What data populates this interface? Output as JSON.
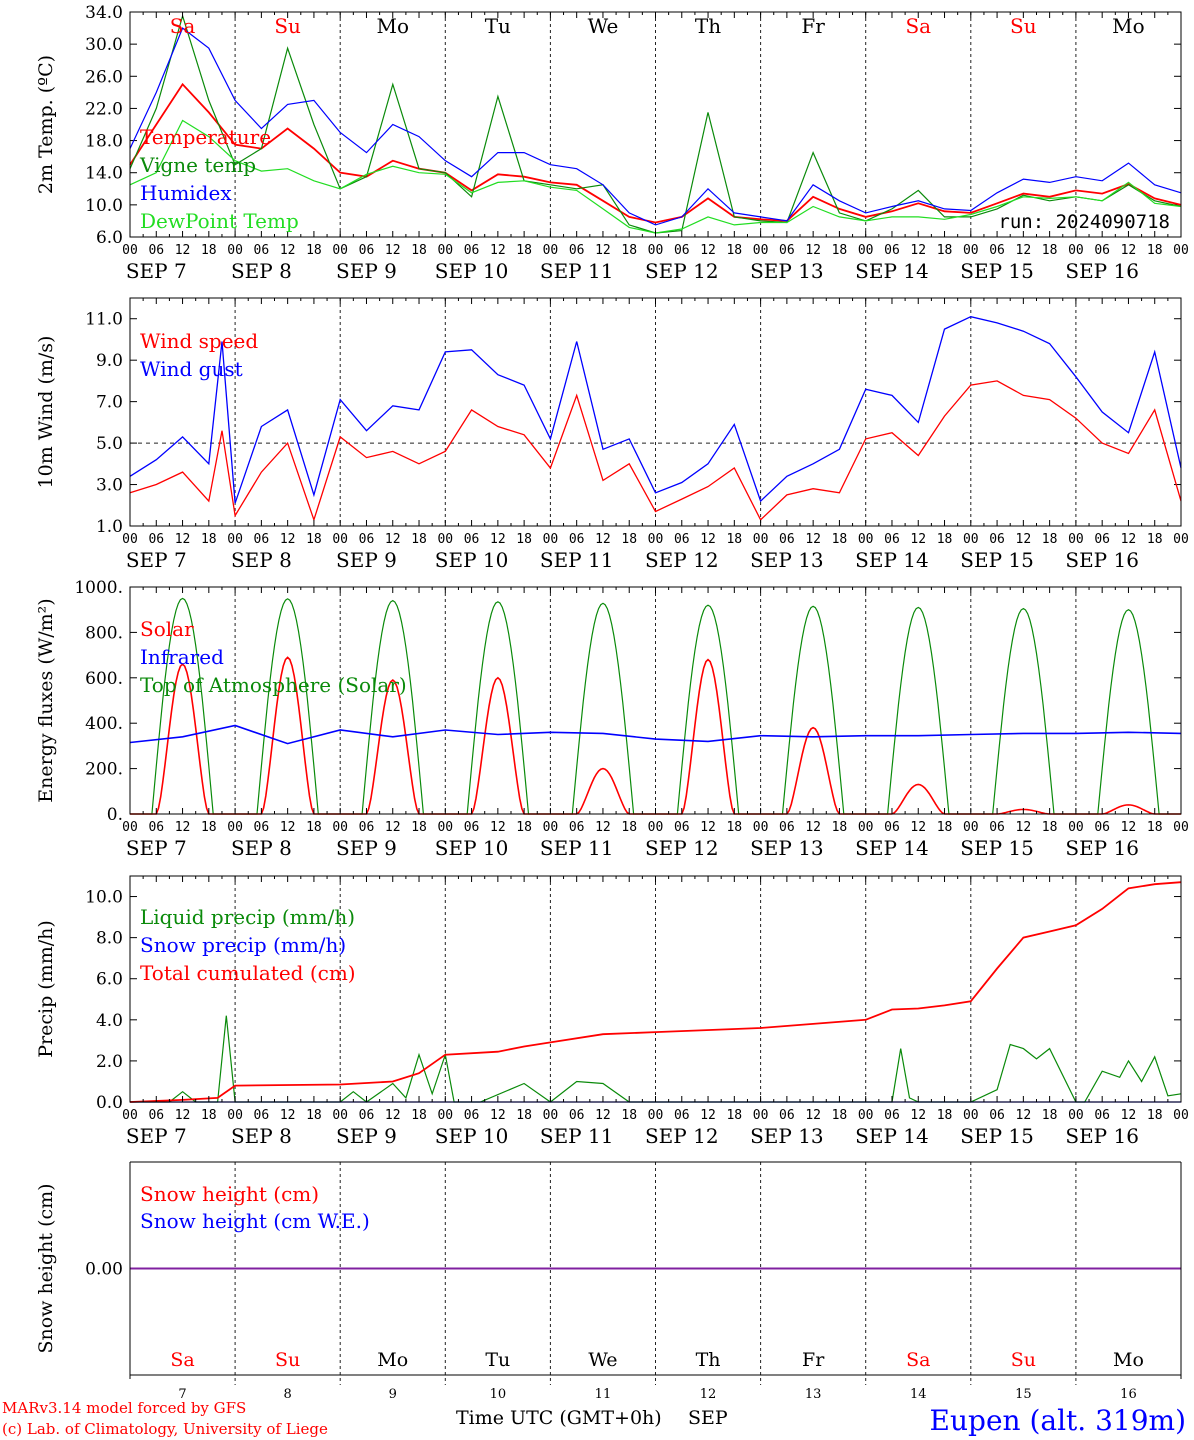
{
  "meta": {
    "run_label": "run: 2024090718",
    "footer_model": "MARv3.14 model forced by GFS",
    "footer_lab": "(c) Lab. of Climatology, University of Liege",
    "station": "Eupen (alt. 319m)",
    "x_title": "Time UTC (GMT+0h)",
    "month": "SEP"
  },
  "colors": {
    "red": "#ff0000",
    "green": "#0a8a0a",
    "blue": "#0000ff",
    "lightgreen": "#22dd22",
    "purple": "#8020a0",
    "grid": "#333333"
  },
  "days": [
    {
      "date": "SEP 7",
      "num": "7",
      "dow": "Sa",
      "weekend": true
    },
    {
      "date": "SEP 8",
      "num": "8",
      "dow": "Su",
      "weekend": true
    },
    {
      "date": "SEP 9",
      "num": "9",
      "dow": "Mo",
      "weekend": false
    },
    {
      "date": "SEP 10",
      "num": "10",
      "dow": "Tu",
      "weekend": false
    },
    {
      "date": "SEP 11",
      "num": "11",
      "dow": "We",
      "weekend": false
    },
    {
      "date": "SEP 12",
      "num": "12",
      "dow": "Th",
      "weekend": false
    },
    {
      "date": "SEP 13",
      "num": "13",
      "dow": "Fr",
      "weekend": false
    },
    {
      "date": "SEP 14",
      "num": "14",
      "dow": "Sa",
      "weekend": true
    },
    {
      "date": "SEP 15",
      "num": "15",
      "dow": "Su",
      "weekend": true
    },
    {
      "date": "SEP 16",
      "num": "16",
      "dow": "Mo",
      "weekend": false
    }
  ],
  "hour_labels": [
    "00",
    "06",
    "12",
    "18"
  ],
  "hour_end_label": "00",
  "chart_data": [
    {
      "id": "temp",
      "type": "line",
      "ylabel": "2m Temp. (ºC)",
      "ylim": [
        6,
        34
      ],
      "yticks": [
        6,
        10,
        14,
        18,
        22,
        26,
        30,
        34
      ],
      "ytick_labels": [
        "6.0",
        "10.0",
        "14.0",
        "18.0",
        "22.0",
        "26.0",
        "30.0",
        "34.0"
      ],
      "x": [
        0,
        6,
        12,
        18,
        24,
        30,
        36,
        42,
        48,
        54,
        60,
        66,
        72,
        78,
        84,
        90,
        96,
        102,
        108,
        114,
        120,
        126,
        132,
        138,
        144,
        150,
        156,
        162,
        168,
        174,
        180,
        186,
        192,
        198,
        204,
        210,
        216,
        222,
        228,
        234,
        240
      ],
      "x_unit": "hours since SEP 7 00 UTC",
      "series": [
        {
          "name": "Temperature",
          "color": "#ff0000",
          "values": [
            15.0,
            20.0,
            25.0,
            21.5,
            17.5,
            17.0,
            19.5,
            17.0,
            14.0,
            13.5,
            15.5,
            14.5,
            14.0,
            11.8,
            13.8,
            13.5,
            12.8,
            12.5,
            10.5,
            8.5,
            7.8,
            8.5,
            10.8,
            8.5,
            8.2,
            8.0,
            11.0,
            9.5,
            8.5,
            9.2,
            10.2,
            9.2,
            9.0,
            10.2,
            11.4,
            11.0,
            11.8,
            11.4,
            12.6,
            10.8,
            10.0
          ]
        },
        {
          "name": "Vigne temp",
          "color": "#0a8a0a",
          "values": [
            14.5,
            22.0,
            33.5,
            23.0,
            15.0,
            17.0,
            29.5,
            20.0,
            12.0,
            13.5,
            25.0,
            14.5,
            14.0,
            11.0,
            23.5,
            13.0,
            12.5,
            12.0,
            12.5,
            7.5,
            6.5,
            6.8,
            21.5,
            8.5,
            8.0,
            7.8,
            16.5,
            9.0,
            8.0,
            9.5,
            11.8,
            8.5,
            8.5,
            9.5,
            11.2,
            10.5,
            11.0,
            10.5,
            12.5,
            10.5,
            9.8
          ]
        },
        {
          "name": "Humidex",
          "color": "#0000ff",
          "values": [
            17.0,
            24.0,
            32.0,
            29.5,
            23.0,
            19.5,
            22.5,
            23.0,
            19.0,
            16.5,
            20.0,
            18.5,
            15.5,
            13.5,
            16.5,
            16.5,
            15.0,
            14.5,
            12.5,
            9.0,
            7.5,
            8.5,
            12.0,
            9.0,
            8.5,
            8.0,
            12.5,
            10.5,
            9.0,
            9.8,
            10.5,
            9.5,
            9.3,
            11.5,
            13.2,
            12.8,
            13.5,
            13.0,
            15.2,
            12.5,
            11.5
          ]
        },
        {
          "name": "DewPoint Temp",
          "color": "#22dd22",
          "values": [
            12.5,
            14.0,
            20.5,
            18.5,
            15.5,
            14.2,
            14.5,
            13.0,
            12.0,
            13.8,
            14.8,
            14.0,
            13.8,
            11.5,
            12.8,
            13.0,
            12.2,
            11.8,
            9.5,
            7.2,
            6.5,
            7.0,
            8.5,
            7.5,
            7.8,
            7.8,
            9.8,
            8.5,
            8.0,
            8.5,
            8.5,
            8.2,
            8.8,
            9.8,
            11.0,
            10.8,
            11.0,
            10.5,
            12.8,
            10.2,
            9.8
          ]
        }
      ]
    },
    {
      "id": "wind",
      "type": "line",
      "ylabel": "10m Wind (m/s)",
      "ylim": [
        1,
        12
      ],
      "yticks": [
        1,
        3,
        5,
        7,
        9,
        11
      ],
      "ytick_labels": [
        "1.0",
        "3.0",
        "5.0",
        "7.0",
        "9.0",
        "11.0"
      ],
      "reference_line": 5,
      "x": [
        0,
        6,
        12,
        18,
        21,
        24,
        30,
        36,
        42,
        48,
        54,
        60,
        66,
        72,
        78,
        84,
        90,
        96,
        102,
        108,
        114,
        120,
        126,
        132,
        138,
        144,
        150,
        156,
        162,
        168,
        174,
        180,
        186,
        192,
        198,
        204,
        210,
        216,
        222,
        228,
        234,
        240
      ],
      "x_unit": "hours since SEP 7 00 UTC",
      "series": [
        {
          "name": "Wind speed",
          "color": "#ff0000",
          "values": [
            2.6,
            3.0,
            3.6,
            2.2,
            5.6,
            1.5,
            3.6,
            5.0,
            1.3,
            5.3,
            4.3,
            4.6,
            4.0,
            4.6,
            6.6,
            5.8,
            5.4,
            3.8,
            7.3,
            3.2,
            4.0,
            1.7,
            2.3,
            2.9,
            3.8,
            1.3,
            2.5,
            2.8,
            2.6,
            5.2,
            5.5,
            4.4,
            6.3,
            7.8,
            8.0,
            7.3,
            7.1,
            6.2,
            5.0,
            4.5,
            6.6,
            2.2
          ]
        },
        {
          "name": "Wind gust",
          "color": "#0000ff",
          "values": [
            3.4,
            4.2,
            5.3,
            4.0,
            9.9,
            2.1,
            5.8,
            6.6,
            2.5,
            7.1,
            5.6,
            6.8,
            6.6,
            9.4,
            9.5,
            8.3,
            7.8,
            5.2,
            9.9,
            4.7,
            5.2,
            2.6,
            3.1,
            4.0,
            5.9,
            2.2,
            3.4,
            4.0,
            4.7,
            7.6,
            7.3,
            6.0,
            10.5,
            11.1,
            10.8,
            10.4,
            9.8,
            8.2,
            6.5,
            5.5,
            9.4,
            3.8
          ]
        }
      ]
    },
    {
      "id": "energy",
      "type": "line",
      "ylabel": "Energy fluxes (W/m²)",
      "ylim": [
        0,
        1000
      ],
      "yticks": [
        0,
        200,
        400,
        600,
        800,
        1000
      ],
      "ytick_labels": [
        "0.",
        "200.",
        "400.",
        "600.",
        "800.",
        "1000."
      ],
      "series": [
        {
          "name": "Solar",
          "color": "#ff0000",
          "daily_peak": [
            660,
            690,
            590,
            600,
            200,
            680,
            380,
            130,
            20,
            40
          ]
        },
        {
          "name": "Infrared",
          "color": "#0000ff",
          "x": [
            0,
            12,
            24,
            36,
            48,
            60,
            72,
            84,
            96,
            108,
            120,
            132,
            144,
            156,
            168,
            180,
            192,
            204,
            216,
            228,
            240
          ],
          "values": [
            315,
            340,
            390,
            310,
            370,
            340,
            370,
            350,
            360,
            355,
            330,
            320,
            345,
            340,
            345,
            345,
            350,
            355,
            355,
            360,
            355
          ]
        },
        {
          "name": "Top of Atmosphere (Solar)",
          "color": "#0a8a0a",
          "daily_peak": [
            950,
            948,
            940,
            935,
            928,
            920,
            915,
            910,
            905,
            900
          ]
        }
      ]
    },
    {
      "id": "precip",
      "type": "line",
      "ylabel": "Precip (mm/h)",
      "ylim": [
        0,
        11
      ],
      "yticks": [
        0,
        2,
        4,
        6,
        8,
        10
      ],
      "ytick_labels": [
        "0.0",
        "2.0",
        "4.0",
        "6.0",
        "8.0",
        "10.0"
      ],
      "x_unit": "hours since SEP 7 00 UTC",
      "series": [
        {
          "name": "Liquid precip (mm/h)",
          "color": "#0a8a0a",
          "x": [
            0,
            9,
            12,
            15,
            20,
            22,
            24,
            30,
            48,
            51,
            54,
            60,
            63,
            66,
            69,
            72,
            74,
            80,
            90,
            96,
            102,
            108,
            114,
            120,
            126,
            168,
            174,
            176,
            178,
            180,
            186,
            192,
            198,
            201,
            204,
            207,
            210,
            216,
            218,
            222,
            226,
            228,
            231,
            234,
            237,
            240
          ],
          "values": [
            0,
            0,
            0.5,
            0,
            0,
            4.2,
            0,
            0,
            0,
            0.5,
            0,
            0.9,
            0.2,
            2.3,
            0.4,
            2.3,
            0,
            0,
            0.9,
            0,
            1.0,
            0.9,
            0,
            0,
            0,
            0,
            0,
            2.6,
            0.2,
            0,
            0,
            0,
            0.6,
            2.8,
            2.6,
            2.1,
            2.6,
            0,
            0,
            1.5,
            1.2,
            2.0,
            1.0,
            2.2,
            0.3,
            0.4
          ]
        },
        {
          "name": "Snow precip (mm/h)",
          "color": "#0000ff",
          "x": [
            0,
            240
          ],
          "values": [
            0,
            0
          ]
        },
        {
          "name": "Total cumulated (cm)",
          "color": "#ff0000",
          "x": [
            0,
            12,
            20,
            24,
            48,
            60,
            66,
            72,
            84,
            90,
            96,
            108,
            120,
            144,
            156,
            168,
            174,
            180,
            186,
            192,
            198,
            204,
            210,
            216,
            222,
            228,
            234,
            240
          ],
          "values": [
            0,
            0.1,
            0.2,
            0.8,
            0.85,
            1.0,
            1.4,
            2.3,
            2.45,
            2.7,
            2.9,
            3.3,
            3.4,
            3.6,
            3.8,
            4.0,
            4.5,
            4.55,
            4.7,
            4.9,
            6.5,
            8.0,
            8.3,
            8.6,
            9.4,
            10.4,
            10.6,
            10.7
          ]
        }
      ]
    },
    {
      "id": "snow",
      "type": "line",
      "ylabel": "Snow height (cm)",
      "ylim": [
        -1,
        1
      ],
      "yticks": [
        0
      ],
      "ytick_labels": [
        "0.00"
      ],
      "series": [
        {
          "name": "Snow height (cm)",
          "color": "#ff0000",
          "x": [
            0,
            240
          ],
          "values": [
            0,
            0
          ]
        },
        {
          "name": "Snow height (cm W.E.)",
          "color": "#0000ff",
          "x": [
            0,
            240
          ],
          "values": [
            0,
            0
          ]
        }
      ]
    }
  ]
}
